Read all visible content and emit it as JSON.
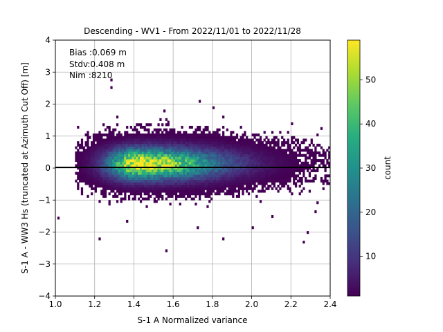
{
  "chart_data": {
    "type": "heatmap",
    "title": "Descending - WV1 - From 2022/11/01 to 2022/11/28",
    "xlabel": "S-1 A Normalized variance",
    "ylabel": "S-1 A - WW3 Hs (truncated at Azimuth Cut Off) [m]",
    "xlim": [
      1.0,
      2.4
    ],
    "ylim": [
      -4,
      4
    ],
    "x_ticks": [
      "1.0",
      "1.2",
      "1.4",
      "1.6",
      "1.8",
      "2.0",
      "2.2",
      "2.4"
    ],
    "y_ticks": [
      "−4",
      "−3",
      "−2",
      "−1",
      "0",
      "1",
      "2",
      "3",
      "4"
    ],
    "grid": true,
    "bin_size": {
      "x": 0.01,
      "y": 0.08
    },
    "stats_text": [
      "Bias :0.069 m",
      "Stdv:0.408 m",
      "Nim :8210"
    ],
    "reference_line_y": 0,
    "colorbar": {
      "label": "count",
      "colormap": "viridis",
      "range": [
        1,
        59
      ],
      "ticks": [
        "10",
        "20",
        "30",
        "40",
        "50"
      ],
      "tick_values": [
        10,
        20,
        30,
        40,
        50
      ]
    },
    "density": {
      "peak_count": 59,
      "center_x": 1.42,
      "center_y": 0.1,
      "spread_x": 0.11,
      "spread_y": 0.32,
      "total_samples": 8210
    },
    "notable_points": [
      {
        "x": 1.28,
        "y": 2.72
      },
      {
        "x": 1.28,
        "y": 2.48
      },
      {
        "x": 1.73,
        "y": 2.05
      },
      {
        "x": 1.8,
        "y": 1.85
      },
      {
        "x": 1.55,
        "y": 1.75
      },
      {
        "x": 1.22,
        "y": -2.25
      },
      {
        "x": 1.56,
        "y": -2.62
      },
      {
        "x": 1.85,
        "y": -2.25
      },
      {
        "x": 2.26,
        "y": -2.35
      },
      {
        "x": 2.28,
        "y": -2.05
      },
      {
        "x": 1.01,
        "y": -1.6
      },
      {
        "x": 2.35,
        "y": 1.2
      },
      {
        "x": 2.39,
        "y": 0.45
      },
      {
        "x": 2.2,
        "y": 1.35
      },
      {
        "x": 2.33,
        "y": -1.12
      },
      {
        "x": 2.32,
        "y": -1.4
      },
      {
        "x": 1.36,
        "y": -1.7
      },
      {
        "x": 2.1,
        "y": -1.55
      },
      {
        "x": 2.0,
        "y": -1.9
      },
      {
        "x": 1.72,
        "y": -1.9
      }
    ]
  }
}
